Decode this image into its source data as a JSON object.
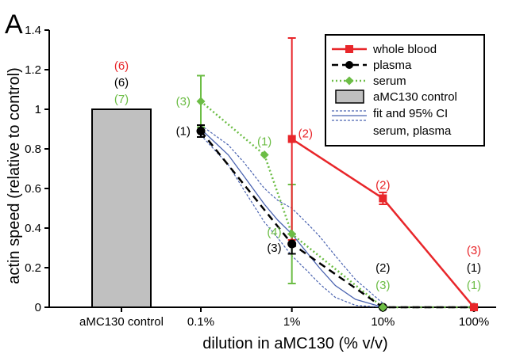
{
  "chart_data": {
    "type": "line",
    "panel_label": "A",
    "xlabel": "dilution in aMC130 (% v/v)",
    "ylabel": "actin speed (relative to control)",
    "ylim": [
      0,
      1.4
    ],
    "yticks": [
      0,
      0.2,
      0.4,
      0.6,
      0.8,
      1.0,
      1.2,
      1.4
    ],
    "ytick_labels": [
      "0",
      "0.2",
      "0.4",
      "0.6",
      "0.8",
      "1",
      "1.2",
      "1.4"
    ],
    "x_scale": "log",
    "xticks": [
      0.1,
      1,
      10,
      100
    ],
    "xtick_labels": [
      "0.1%",
      "1%",
      "10%",
      "100%"
    ],
    "control_category": "aMC130 control",
    "control_bar": {
      "value": 1.0,
      "n_labels": [
        "(6)",
        "(6)",
        "(7)"
      ]
    },
    "colors": {
      "whole_blood": "#e8262a",
      "plasma": "#000000",
      "serum": "#6cbd45",
      "fit": "#4a63b0",
      "bar_fill": "#c0c0c0"
    },
    "legend_position": "top-right",
    "legend": {
      "whole_blood": "whole blood",
      "plasma": "plasma",
      "serum": "serum",
      "control": "aMC130 control",
      "fit_line1": "fit and 95% CI",
      "fit_line2": "serum, plasma"
    },
    "series": [
      {
        "key": "whole_blood",
        "name": "whole blood",
        "x": [
          1,
          10,
          100
        ],
        "y": [
          0.85,
          0.55,
          0.0
        ],
        "err": [
          0.51,
          0.03,
          0.0
        ]
      },
      {
        "key": "plasma",
        "name": "plasma",
        "x": [
          0.1,
          1,
          10,
          100
        ],
        "y": [
          0.89,
          0.32,
          0.0,
          0.0
        ],
        "err": [
          0.03,
          0.05,
          0.0,
          0.0
        ]
      },
      {
        "key": "serum",
        "name": "serum",
        "x": [
          0.1,
          0.5,
          1,
          10,
          100
        ],
        "y": [
          1.04,
          0.77,
          0.37,
          0.0,
          0.0
        ],
        "err": [
          0.13,
          0.0,
          0.25,
          0.0,
          0.0
        ]
      }
    ],
    "fit": {
      "x": [
        0.1,
        0.2,
        0.3,
        0.5,
        0.7,
        1,
        1.5,
        2,
        3,
        5,
        10
      ],
      "y": [
        0.9,
        0.77,
        0.66,
        0.52,
        0.44,
        0.37,
        0.27,
        0.2,
        0.11,
        0.04,
        0.0
      ],
      "ci_upper": [
        0.92,
        0.82,
        0.73,
        0.6,
        0.54,
        0.5,
        0.42,
        0.36,
        0.26,
        0.14,
        0.02
      ],
      "ci_lower": [
        0.87,
        0.72,
        0.59,
        0.43,
        0.35,
        0.26,
        0.18,
        0.12,
        0.05,
        0.01,
        0.0
      ]
    },
    "n_labels": [
      {
        "text": "(3)",
        "color": "serum",
        "x": 0.1,
        "y": 1.04,
        "side": "left"
      },
      {
        "text": "(1)",
        "color": "plasma",
        "x": 0.1,
        "y": 0.89,
        "side": "left"
      },
      {
        "text": "(1)",
        "color": "serum",
        "x": 0.5,
        "y": 0.77,
        "side": "above"
      },
      {
        "text": "(2)",
        "color": "whole_blood",
        "x": 1,
        "y": 0.85,
        "side": "right"
      },
      {
        "text": "(4)",
        "color": "serum",
        "x": 1,
        "y": 0.38,
        "side": "left"
      },
      {
        "text": "(3)",
        "color": "plasma",
        "x": 1,
        "y": 0.3,
        "side": "left"
      },
      {
        "text": "(2)",
        "color": "whole_blood",
        "x": 10,
        "y": 0.55,
        "side": "above"
      },
      {
        "text": "(2)",
        "color": "plasma",
        "x": 10,
        "y": 0.0,
        "side": "stack2"
      },
      {
        "text": "(3)",
        "color": "serum",
        "x": 10,
        "y": 0.0,
        "side": "stack1"
      },
      {
        "text": "(3)",
        "color": "whole_blood",
        "x": 100,
        "y": 0.0,
        "side": "stack3"
      },
      {
        "text": "(1)",
        "color": "plasma",
        "x": 100,
        "y": 0.0,
        "side": "stack2"
      },
      {
        "text": "(1)",
        "color": "serum",
        "x": 100,
        "y": 0.0,
        "side": "stack1"
      }
    ]
  }
}
